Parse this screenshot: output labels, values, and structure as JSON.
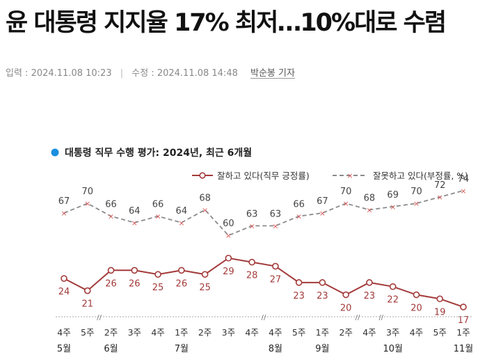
{
  "article": {
    "headline": "윤 대통령 지지율 17% 최저…10%대로 수렴",
    "input_label": "입력 : 2024.11.08 10:23",
    "modified_label": "수정 : 2024.11.08 14:48",
    "reporter": "박순봉 기자"
  },
  "chart_data": {
    "type": "line",
    "title": "대통령 직무 수행 평가: 2024년, 최근 6개월",
    "x": [
      "4주",
      "5주",
      "2주",
      "3주",
      "4주",
      "1주",
      "2주",
      "3주",
      "4주",
      "4주",
      "5주",
      "1주",
      "2주",
      "4주",
      "3주",
      "4주",
      "5주",
      "1주"
    ],
    "months": [
      {
        "label": "5월",
        "index": 0
      },
      {
        "label": "6월",
        "index": 2
      },
      {
        "label": "7월",
        "index": 5
      },
      {
        "label": "8월",
        "index": 9
      },
      {
        "label": "9월",
        "index": 11
      },
      {
        "label": "10월",
        "index": 14
      },
      {
        "label": "11월",
        "index": 17
      }
    ],
    "series": [
      {
        "name": "잘하고 있다(직무 긍정률)",
        "color": "#a33a3a",
        "style": "solid",
        "values": [
          24,
          21,
          26,
          26,
          25,
          26,
          25,
          29,
          28,
          27,
          23,
          23,
          20,
          23,
          22,
          20,
          19,
          17
        ]
      },
      {
        "name": "잘못하고 있다(부정률, %)",
        "color": "#8a8a8a",
        "style": "dashed",
        "values": [
          67,
          70,
          66,
          64,
          66,
          64,
          68,
          60,
          63,
          63,
          66,
          67,
          70,
          68,
          69,
          70,
          72,
          74
        ]
      }
    ],
    "axis_breaks_after_index": [
      1,
      8,
      12,
      13
    ]
  }
}
